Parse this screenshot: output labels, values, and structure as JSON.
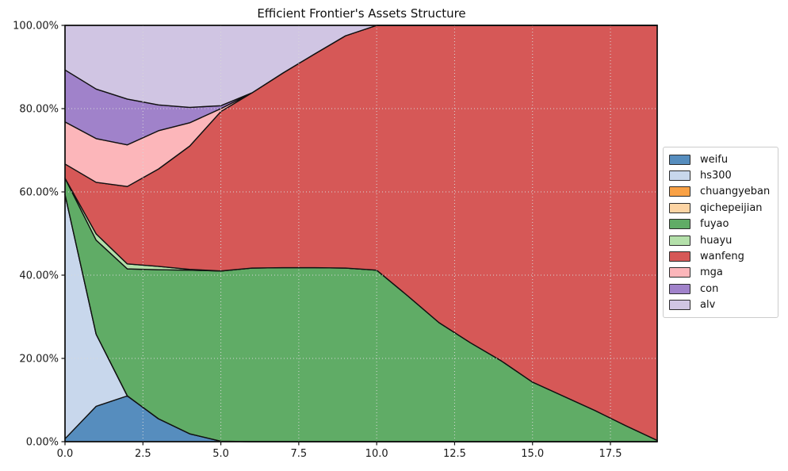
{
  "chart_data": {
    "type": "area",
    "stacked": true,
    "title": "Efficient Frontier's Assets Structure",
    "xlabel": "",
    "ylabel": "",
    "xlim": [
      0,
      19
    ],
    "ylim": [
      0,
      100
    ],
    "grid": "dotted",
    "legend_position": "center-right outside axes",
    "x": [
      0,
      1,
      2,
      3,
      4,
      5,
      6,
      7,
      8,
      9,
      10,
      11,
      12,
      13,
      14,
      15,
      16,
      17,
      18,
      19
    ],
    "x_ticks": [
      0,
      2.5,
      5,
      7.5,
      10,
      12.5,
      15,
      17.5
    ],
    "x_tick_labels": [
      "0.0",
      "2.5",
      "5.0",
      "7.5",
      "10.0",
      "12.5",
      "15.0",
      "17.5"
    ],
    "y_ticks": [
      0,
      20,
      40,
      60,
      80,
      100
    ],
    "y_tick_labels": [
      "0.00%",
      "20.00%",
      "40.00%",
      "60.00%",
      "80.00%",
      "100.00%"
    ],
    "series": [
      {
        "name": "weifu",
        "color": "#568dbe",
        "values": [
          0.7,
          8.5,
          11.0,
          5.5,
          1.9,
          0.1,
          0,
          0,
          0,
          0,
          0,
          0,
          0,
          0,
          0,
          0,
          0,
          0,
          0,
          0
        ]
      },
      {
        "name": "hs300",
        "color": "#c8d7ec",
        "values": [
          58.7,
          17.3,
          0,
          0,
          0,
          0,
          0,
          0,
          0,
          0,
          0,
          0,
          0,
          0,
          0,
          0,
          0,
          0,
          0,
          0
        ]
      },
      {
        "name": "chuangyeban",
        "color": "#f9a145",
        "values": [
          0,
          0,
          0,
          0,
          0,
          0,
          0,
          0,
          0,
          0,
          0,
          0,
          0,
          0,
          0,
          0,
          0,
          0,
          0,
          0
        ]
      },
      {
        "name": "qichepeijian",
        "color": "#fcd4a4",
        "values": [
          0,
          0,
          0,
          0,
          0,
          0,
          0,
          0,
          0,
          0,
          0,
          0,
          0,
          0,
          0,
          0,
          0,
          0,
          0,
          0
        ]
      },
      {
        "name": "fuyao",
        "color": "#60ac66",
        "values": [
          3.9,
          22.6,
          30.5,
          35.8,
          39.3,
          40.9,
          41.7,
          41.8,
          41.8,
          41.7,
          41.2,
          35.0,
          28.6,
          23.8,
          19.4,
          14.3,
          10.9,
          7.5,
          3.8,
          0.3
        ]
      },
      {
        "name": "huayu",
        "color": "#b4e0aa",
        "values": [
          0,
          1.5,
          1.2,
          0.8,
          0.2,
          0,
          0,
          0,
          0,
          0,
          0,
          0,
          0,
          0,
          0,
          0,
          0,
          0,
          0,
          0
        ]
      },
      {
        "name": "wanfeng",
        "color": "#d65857",
        "values": [
          3.4,
          12.4,
          18.6,
          23.4,
          29.6,
          38.3,
          42.1,
          46.8,
          51.3,
          55.8,
          58.8,
          65.0,
          71.4,
          76.2,
          80.6,
          85.7,
          89.1,
          92.5,
          96.2,
          99.7
        ]
      },
      {
        "name": "mga",
        "color": "#fcb6ba",
        "values": [
          10.1,
          10.5,
          10.0,
          9.2,
          5.6,
          0.7,
          0,
          0,
          0,
          0,
          0,
          0,
          0,
          0,
          0,
          0,
          0,
          0,
          0,
          0
        ]
      },
      {
        "name": "con",
        "color": "#a082ca",
        "values": [
          12.5,
          11.9,
          11.0,
          6.2,
          3.7,
          0.7,
          0,
          0,
          0,
          0,
          0,
          0,
          0,
          0,
          0,
          0,
          0,
          0,
          0,
          0
        ]
      },
      {
        "name": "alv",
        "color": "#d0c5e3",
        "values": [
          10.7,
          15.3,
          17.7,
          19.1,
          19.7,
          19.3,
          16.2,
          11.4,
          6.9,
          2.5,
          0,
          0,
          0,
          0,
          0,
          0,
          0,
          0,
          0,
          0
        ]
      }
    ],
    "style": {
      "area_edge_color": "#111111",
      "grid_color": "#d9d9d9",
      "spine_color": "#111111",
      "tick_label_color": "#1a1a1a"
    }
  }
}
